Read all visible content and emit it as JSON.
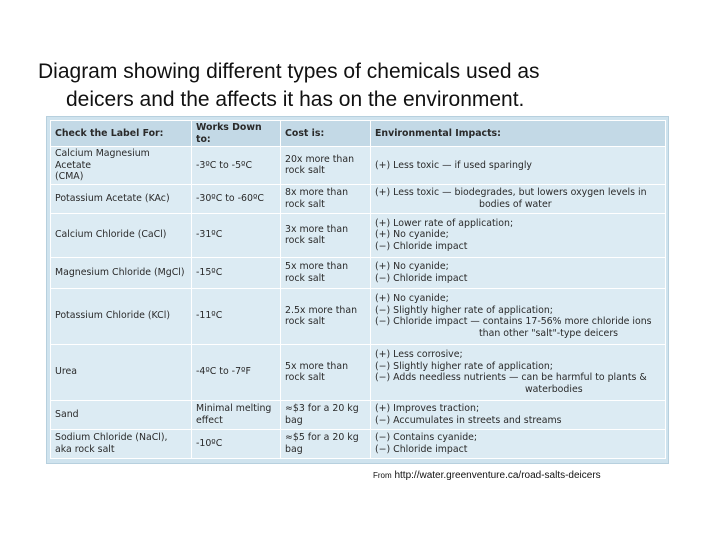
{
  "slide": {
    "title_line1": "Diagram showing different types of chemicals used as",
    "title_line2": "deicers and the affects it has on the environment.",
    "source_prefix": "From",
    "source_url": "http://water.greenventure.ca/road-salts-deicers"
  },
  "table": {
    "headers": [
      "Check the Label For:",
      "Works Down to:",
      "Cost is:",
      "Environmental Impacts:"
    ],
    "rows": [
      {
        "chemical": "Calcium Magnesium Acetate\n(CMA)",
        "works_down_to": "-3ºC to -5ºC",
        "cost": "20x more than\nrock salt",
        "impacts": [
          "(+) Less toxic — if used sparingly"
        ]
      },
      {
        "chemical": "Potassium Acetate (KAc)",
        "works_down_to": "-30ºC to -60ºC",
        "cost": "8x more than\nrock salt",
        "impacts": [
          "(+) Less toxic — biodegrades, but lowers oxygen levels in",
          "bodies of water"
        ]
      },
      {
        "chemical": "Calcium Chloride (CaCl)",
        "works_down_to": "-31ºC",
        "cost": "3x more than\nrock salt",
        "impacts": [
          "(+) Lower rate of application;\n(+) No cyanide;\n(−) Chloride impact"
        ]
      },
      {
        "chemical": "Magnesium Chloride (MgCl)",
        "works_down_to": "-15ºC",
        "cost": "5x more than\nrock salt",
        "impacts": [
          "(+) No cyanide;\n(−) Chloride impact"
        ]
      },
      {
        "chemical": "Potassium Chloride (KCl)",
        "works_down_to": "-11ºC",
        "cost": "2.5x more than\nrock salt",
        "impacts": [
          "(+) No cyanide;\n(−) Slightly higher rate of application;\n(−) Chloride impact — contains 17-56% more chloride ions",
          "than other \"salt\"-type deicers"
        ]
      },
      {
        "chemical": "Urea",
        "works_down_to": "-4ºC to -7ºF",
        "cost": "5x more than\nrock salt",
        "impacts": [
          "(+) Less corrosive;\n(−) Slightly higher rate of application;\n(−) Adds needless nutrients — can be harmful to plants &",
          "waterbodies"
        ]
      },
      {
        "chemical": "Sand",
        "works_down_to": "Minimal melting\neffect",
        "cost": "≈$3 for a 20 kg\nbag",
        "impacts": [
          "(+) Improves traction;\n(−) Accumulates in streets and streams"
        ]
      },
      {
        "chemical": "Sodium Chloride (NaCl),\naka rock salt",
        "works_down_to": "-10ºC",
        "cost": "≈$5 for a 20 kg\nbag",
        "impacts": [
          "(−) Contains cyanide;\n(−) Chloride impact"
        ]
      }
    ]
  }
}
